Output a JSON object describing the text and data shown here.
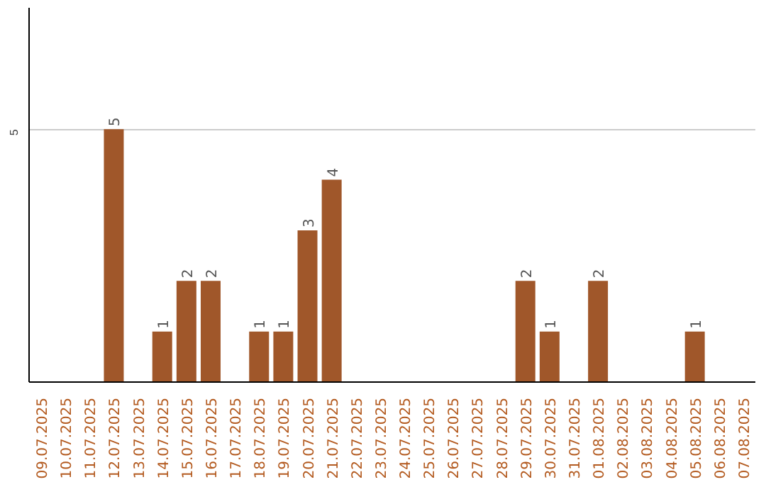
{
  "chart_data": {
    "type": "bar",
    "categories": [
      "09.07.2025",
      "10.07.2025",
      "11.07.2025",
      "12.07.2025",
      "13.07.2025",
      "14.07.2025",
      "15.07.2025",
      "16.07.2025",
      "17.07.2025",
      "18.07.2025",
      "19.07.2025",
      "20.07.2025",
      "21.07.2025",
      "22.07.2025",
      "23.07.2025",
      "24.07.2025",
      "25.07.2025",
      "26.07.2025",
      "27.07.2025",
      "28.07.2025",
      "29.07.2025",
      "30.07.2025",
      "31.07.2025",
      "01.08.2025",
      "02.08.2025",
      "03.08.2025",
      "04.08.2025",
      "05.08.2025",
      "06.08.2025",
      "07.08.2025"
    ],
    "values": [
      0,
      0,
      0,
      5,
      0,
      1,
      2,
      2,
      0,
      1,
      1,
      3,
      4,
      0,
      0,
      0,
      0,
      0,
      0,
      0,
      2,
      1,
      0,
      2,
      0,
      0,
      0,
      1,
      0,
      0
    ],
    "value_labels": [
      null,
      null,
      null,
      "5",
      null,
      "1",
      "2",
      "2",
      null,
      "1",
      "1",
      "3",
      "4",
      null,
      null,
      null,
      null,
      null,
      null,
      null,
      "2",
      "1",
      null,
      "2",
      null,
      null,
      null,
      "1",
      null,
      null
    ],
    "color": "#a0572a",
    "ylim": [
      0,
      7.4
    ],
    "yticks": [
      5
    ],
    "grid": "y"
  }
}
